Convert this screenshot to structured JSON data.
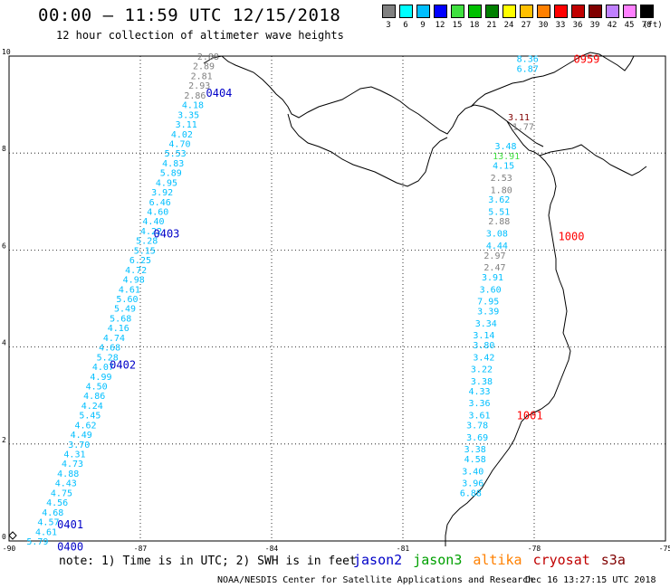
{
  "title": "00:00 – 11:59 UTC 12/15/2018",
  "subtitle": "12 hour collection of altimeter wave heights",
  "legend": {
    "labels": [
      "3",
      "6",
      "9",
      "12",
      "15",
      "18",
      "21",
      "24",
      "27",
      "30",
      "33",
      "36",
      "39",
      "42",
      "45",
      "70"
    ],
    "colors": [
      "#808080",
      "#00ffff",
      "#00bfff",
      "#0000ff",
      "#40e040",
      "#00c000",
      "#008000",
      "#ffff00",
      "#ffc000",
      "#ff8000",
      "#ff0000",
      "#c00000",
      "#800000",
      "#c080ff",
      "#ff80ff",
      "#000000"
    ],
    "unit": "(ft)"
  },
  "axes": {
    "x_ticks": [
      "-90",
      "-87",
      "-84",
      "-81",
      "-78",
      "-75"
    ],
    "y_ticks": [
      "0",
      "2",
      "4",
      "6",
      "8",
      "10"
    ]
  },
  "tracks": [
    {
      "name": "jason2-track",
      "color": "#0000c8",
      "time_labels": [
        {
          "text": "0400",
          "lon": -88.9,
          "lat": -0.1
        },
        {
          "text": "0401",
          "lon": -88.9,
          "lat": 0.35
        },
        {
          "text": "0402",
          "lon": -87.7,
          "lat": 3.65
        },
        {
          "text": "0403",
          "lon": -86.7,
          "lat": 6.35
        },
        {
          "text": "0404",
          "lon": -85.5,
          "lat": 9.25
        }
      ],
      "points": [
        {
          "v": "5.79",
          "lon": -89.6,
          "lat": 0.0,
          "c": "#00bfff"
        },
        {
          "v": "4.61",
          "lon": -89.4,
          "lat": 0.2,
          "c": "#00bfff"
        },
        {
          "v": "4.57",
          "lon": -89.35,
          "lat": 0.4,
          "c": "#00bfff"
        },
        {
          "v": "4.68",
          "lon": -89.25,
          "lat": 0.6,
          "c": "#00bfff"
        },
        {
          "v": "4.56",
          "lon": -89.15,
          "lat": 0.8,
          "c": "#00bfff"
        },
        {
          "v": "4.75",
          "lon": -89.05,
          "lat": 1.0,
          "c": "#00bfff"
        },
        {
          "v": "4.43",
          "lon": -88.95,
          "lat": 1.2,
          "c": "#00bfff"
        },
        {
          "v": "4.88",
          "lon": -88.9,
          "lat": 1.4,
          "c": "#00bfff"
        },
        {
          "v": "4.73",
          "lon": -88.8,
          "lat": 1.6,
          "c": "#00bfff"
        },
        {
          "v": "4.31",
          "lon": -88.75,
          "lat": 1.8,
          "c": "#00bfff"
        },
        {
          "v": "3.70",
          "lon": -88.65,
          "lat": 2.0,
          "c": "#00bfff"
        },
        {
          "v": "4.49",
          "lon": -88.6,
          "lat": 2.2,
          "c": "#00bfff"
        },
        {
          "v": "4.62",
          "lon": -88.5,
          "lat": 2.4,
          "c": "#00bfff"
        },
        {
          "v": "5.45",
          "lon": -88.4,
          "lat": 2.6,
          "c": "#00bfff"
        },
        {
          "v": "4.24",
          "lon": -88.35,
          "lat": 2.8,
          "c": "#00bfff"
        },
        {
          "v": "4.86",
          "lon": -88.3,
          "lat": 3.0,
          "c": "#00bfff"
        },
        {
          "v": "4.50",
          "lon": -88.25,
          "lat": 3.2,
          "c": "#00bfff"
        },
        {
          "v": "4.99",
          "lon": -88.15,
          "lat": 3.4,
          "c": "#00bfff"
        },
        {
          "v": "4.07",
          "lon": -88.1,
          "lat": 3.6,
          "c": "#00bfff"
        },
        {
          "v": "5.28",
          "lon": -88.0,
          "lat": 3.8,
          "c": "#00bfff"
        },
        {
          "v": "4.68",
          "lon": -87.95,
          "lat": 4.0,
          "c": "#00bfff"
        },
        {
          "v": "4.74",
          "lon": -87.85,
          "lat": 4.2,
          "c": "#00bfff"
        },
        {
          "v": "4.16",
          "lon": -87.75,
          "lat": 4.4,
          "c": "#00bfff"
        },
        {
          "v": "5.68",
          "lon": -87.7,
          "lat": 4.6,
          "c": "#00bfff"
        },
        {
          "v": "5.49",
          "lon": -87.6,
          "lat": 4.8,
          "c": "#00bfff"
        },
        {
          "v": "5.60",
          "lon": -87.55,
          "lat": 5.0,
          "c": "#00bfff"
        },
        {
          "v": "4.61",
          "lon": -87.5,
          "lat": 5.2,
          "c": "#00bfff"
        },
        {
          "v": "4.98",
          "lon": -87.4,
          "lat": 5.4,
          "c": "#00bfff"
        },
        {
          "v": "4.72",
          "lon": -87.35,
          "lat": 5.6,
          "c": "#00bfff"
        },
        {
          "v": "6.25",
          "lon": -87.25,
          "lat": 5.8,
          "c": "#00bfff"
        },
        {
          "v": "5.15",
          "lon": -87.15,
          "lat": 6.0,
          "c": "#00bfff"
        },
        {
          "v": "5.28",
          "lon": -87.1,
          "lat": 6.2,
          "c": "#00bfff"
        },
        {
          "v": "4.22",
          "lon": -87.0,
          "lat": 6.4,
          "c": "#00bfff"
        },
        {
          "v": "4.40",
          "lon": -86.95,
          "lat": 6.6,
          "c": "#00bfff"
        },
        {
          "v": "4.60",
          "lon": -86.85,
          "lat": 6.8,
          "c": "#00bfff"
        },
        {
          "v": "6.46",
          "lon": -86.8,
          "lat": 7.0,
          "c": "#00bfff"
        },
        {
          "v": "3.92",
          "lon": -86.75,
          "lat": 7.2,
          "c": "#00bfff"
        },
        {
          "v": "4.95",
          "lon": -86.65,
          "lat": 7.4,
          "c": "#00bfff"
        },
        {
          "v": "5.89",
          "lon": -86.55,
          "lat": 7.6,
          "c": "#00bfff"
        },
        {
          "v": "4.83",
          "lon": -86.5,
          "lat": 7.8,
          "c": "#00bfff"
        },
        {
          "v": "5.53",
          "lon": -86.45,
          "lat": 8.0,
          "c": "#00bfff"
        },
        {
          "v": "4.70",
          "lon": -86.35,
          "lat": 8.2,
          "c": "#00bfff"
        },
        {
          "v": "4.02",
          "lon": -86.3,
          "lat": 8.4,
          "c": "#00bfff"
        },
        {
          "v": "3.11",
          "lon": -86.2,
          "lat": 8.6,
          "c": "#00bfff"
        },
        {
          "v": "3.35",
          "lon": -86.15,
          "lat": 8.8,
          "c": "#00bfff"
        },
        {
          "v": "4.18",
          "lon": -86.05,
          "lat": 9.0,
          "c": "#00bfff"
        },
        {
          "v": "2.86",
          "lon": -86.0,
          "lat": 9.2,
          "c": "#808080"
        },
        {
          "v": "2.93",
          "lon": -85.9,
          "lat": 9.4,
          "c": "#808080"
        },
        {
          "v": "2.81",
          "lon": -85.85,
          "lat": 9.6,
          "c": "#808080"
        },
        {
          "v": "2.89",
          "lon": -85.8,
          "lat": 9.8,
          "c": "#808080"
        },
        {
          "v": "2.88",
          "lon": -85.7,
          "lat": 10.0,
          "c": "#808080"
        }
      ]
    },
    {
      "name": "cryosat-track",
      "color": "#ff0000",
      "time_labels": [
        {
          "text": "0959",
          "lon": -77.1,
          "lat": 9.95
        },
        {
          "text": "1000",
          "lon": -77.45,
          "lat": 6.3
        },
        {
          "text": "1001",
          "lon": -78.4,
          "lat": 2.6
        }
      ],
      "points": [
        {
          "v": "8.36",
          "lon": -78.4,
          "lat": 9.95,
          "c": "#00bfff"
        },
        {
          "v": "6.87",
          "lon": -78.4,
          "lat": 9.75,
          "c": "#00bfff"
        },
        {
          "v": "3.11",
          "lon": -78.6,
          "lat": 8.75,
          "c": "#800000"
        },
        {
          "v": "1.77",
          "lon": -78.5,
          "lat": 8.55,
          "c": "#808080"
        },
        {
          "v": "3.48",
          "lon": -78.9,
          "lat": 8.15,
          "c": "#00bfff"
        },
        {
          "v": "13.91",
          "lon": -78.95,
          "lat": 7.95,
          "c": "#40e040"
        },
        {
          "v": "4.15",
          "lon": -78.95,
          "lat": 7.75,
          "c": "#00bfff"
        },
        {
          "v": "2.53",
          "lon": -79.0,
          "lat": 7.5,
          "c": "#808080"
        },
        {
          "v": "1.80",
          "lon": -79.0,
          "lat": 7.25,
          "c": "#808080"
        },
        {
          "v": "3.62",
          "lon": -79.05,
          "lat": 7.05,
          "c": "#00bfff"
        },
        {
          "v": "5.51",
          "lon": -79.05,
          "lat": 6.8,
          "c": "#00bfff"
        },
        {
          "v": "2.88",
          "lon": -79.05,
          "lat": 6.6,
          "c": "#808080"
        },
        {
          "v": "3.08",
          "lon": -79.1,
          "lat": 6.35,
          "c": "#00bfff"
        },
        {
          "v": "4.44",
          "lon": -79.1,
          "lat": 6.1,
          "c": "#00bfff"
        },
        {
          "v": "2.97",
          "lon": -79.15,
          "lat": 5.9,
          "c": "#808080"
        },
        {
          "v": "2.47",
          "lon": -79.15,
          "lat": 5.65,
          "c": "#808080"
        },
        {
          "v": "3.91",
          "lon": -79.2,
          "lat": 5.45,
          "c": "#00bfff"
        },
        {
          "v": "3.60",
          "lon": -79.25,
          "lat": 5.2,
          "c": "#00bfff"
        },
        {
          "v": "7.95",
          "lon": -79.3,
          "lat": 4.95,
          "c": "#00bfff"
        },
        {
          "v": "3.39",
          "lon": -79.3,
          "lat": 4.75,
          "c": "#00bfff"
        },
        {
          "v": "3.34",
          "lon": -79.35,
          "lat": 4.5,
          "c": "#00bfff"
        },
        {
          "v": "3.14",
          "lon": -79.4,
          "lat": 4.25,
          "c": "#00bfff"
        },
        {
          "v": "3.80",
          "lon": -79.4,
          "lat": 4.05,
          "c": "#00bfff"
        },
        {
          "v": "3.42",
          "lon": -79.4,
          "lat": 3.8,
          "c": "#00bfff"
        },
        {
          "v": "3.22",
          "lon": -79.45,
          "lat": 3.55,
          "c": "#00bfff"
        },
        {
          "v": "3.38",
          "lon": -79.45,
          "lat": 3.3,
          "c": "#00bfff"
        },
        {
          "v": "4.33",
          "lon": -79.5,
          "lat": 3.1,
          "c": "#00bfff"
        },
        {
          "v": "3.36",
          "lon": -79.5,
          "lat": 2.85,
          "c": "#00bfff"
        },
        {
          "v": "3.61",
          "lon": -79.5,
          "lat": 2.6,
          "c": "#00bfff"
        },
        {
          "v": "3.78",
          "lon": -79.55,
          "lat": 2.4,
          "c": "#00bfff"
        },
        {
          "v": "3.69",
          "lon": -79.55,
          "lat": 2.15,
          "c": "#00bfff"
        },
        {
          "v": "3.38",
          "lon": -79.6,
          "lat": 1.9,
          "c": "#00bfff"
        },
        {
          "v": "4.58",
          "lon": -79.6,
          "lat": 1.7,
          "c": "#00bfff"
        },
        {
          "v": "3.40",
          "lon": -79.65,
          "lat": 1.45,
          "c": "#00bfff"
        },
        {
          "v": "3.96",
          "lon": -79.65,
          "lat": 1.2,
          "c": "#00bfff"
        },
        {
          "v": "6.88",
          "lon": -79.7,
          "lat": 1.0,
          "c": "#00bfff"
        }
      ]
    }
  ],
  "note": "note: 1) Time is in UTC; 2) SWH is in feet",
  "satellites": [
    {
      "name": "jason2",
      "color": "#0000c8"
    },
    {
      "name": "jason3",
      "color": "#00a000"
    },
    {
      "name": "altika",
      "color": "#ff8000"
    },
    {
      "name": "cryosat",
      "color": "#c00000"
    },
    {
      "name": "s3a",
      "color": "#800000"
    }
  ],
  "footer": "NOAA/NESDIS Center for Satellite Applications and Research",
  "timestamp": "Dec 16 13:27:15 UTC 2018"
}
